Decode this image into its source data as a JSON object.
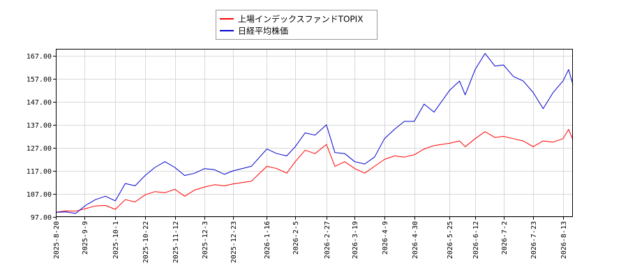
{
  "chart_data": {
    "type": "line",
    "title": "",
    "xlabel": "",
    "ylabel": "",
    "ylim": [
      97.0,
      170.0
    ],
    "yticks": [
      "97.00",
      "107.00",
      "117.00",
      "127.00",
      "137.00",
      "147.00",
      "157.00",
      "167.00"
    ],
    "xticks": [
      "2025-8-20",
      "2025-9-9",
      "2025-10-1",
      "2025-10-22",
      "2025-11-12",
      "2025-12-3",
      "2025-12-23",
      "2026-1-16",
      "2026-2-5",
      "2026-2-27",
      "2026-3-19",
      "2026-4-9",
      "2026-4-30",
      "2026-5-25",
      "2026-6-12",
      "2026-7-2",
      "2026-7-23",
      "2026-8-13"
    ],
    "grid": true,
    "legend_position": "top-center",
    "x_range": [
      "2025-08-20",
      "2026-08-20"
    ],
    "series": [
      {
        "name": "上場インデックスファンドTOPIX",
        "color": "#ff0000",
        "points": [
          [
            "2025-08-20",
            99.0
          ],
          [
            "2025-08-27",
            99.6
          ],
          [
            "2025-09-03",
            99.5
          ],
          [
            "2025-09-10",
            100.6
          ],
          [
            "2025-09-17",
            101.8
          ],
          [
            "2025-09-24",
            102.0
          ],
          [
            "2025-10-01",
            100.3
          ],
          [
            "2025-10-08",
            104.5
          ],
          [
            "2025-10-15",
            103.5
          ],
          [
            "2025-10-22",
            106.6
          ],
          [
            "2025-10-29",
            108.0
          ],
          [
            "2025-11-05",
            107.5
          ],
          [
            "2025-11-12",
            109.0
          ],
          [
            "2025-11-19",
            106.0
          ],
          [
            "2025-11-26",
            108.7
          ],
          [
            "2025-12-03",
            110.0
          ],
          [
            "2025-12-10",
            111.0
          ],
          [
            "2025-12-17",
            110.5
          ],
          [
            "2025-12-23",
            111.3
          ],
          [
            "2026-01-05",
            112.5
          ],
          [
            "2026-01-16",
            119.0
          ],
          [
            "2026-01-23",
            118.0
          ],
          [
            "2026-01-30",
            116.0
          ],
          [
            "2026-02-05",
            121.0
          ],
          [
            "2026-02-12",
            126.0
          ],
          [
            "2026-02-19",
            124.5
          ],
          [
            "2026-02-27",
            128.5
          ],
          [
            "2026-03-05",
            119.0
          ],
          [
            "2026-03-12",
            121.0
          ],
          [
            "2026-03-19",
            118.0
          ],
          [
            "2026-03-26",
            116.0
          ],
          [
            "2026-04-02",
            119.0
          ],
          [
            "2026-04-09",
            122.0
          ],
          [
            "2026-04-16",
            123.5
          ],
          [
            "2026-04-23",
            123.0
          ],
          [
            "2026-04-30",
            124.0
          ],
          [
            "2026-05-07",
            126.5
          ],
          [
            "2026-05-14",
            128.0
          ],
          [
            "2026-05-25",
            129.0
          ],
          [
            "2026-06-01",
            130.0
          ],
          [
            "2026-06-05",
            127.5
          ],
          [
            "2026-06-12",
            131.0
          ],
          [
            "2026-06-19",
            134.0
          ],
          [
            "2026-06-26",
            131.5
          ],
          [
            "2026-07-02",
            132.0
          ],
          [
            "2026-07-09",
            131.0
          ],
          [
            "2026-07-16",
            130.0
          ],
          [
            "2026-07-23",
            127.5
          ],
          [
            "2026-07-30",
            130.0
          ],
          [
            "2026-08-06",
            129.5
          ],
          [
            "2026-08-13",
            131.0
          ],
          [
            "2026-08-17",
            135.0
          ],
          [
            "2026-08-20",
            130.5
          ]
        ]
      },
      {
        "name": "日経平均株価",
        "color": "#0000cd",
        "points": [
          [
            "2025-08-20",
            99.0
          ],
          [
            "2025-08-27",
            99.2
          ],
          [
            "2025-09-03",
            98.5
          ],
          [
            "2025-09-10",
            102.0
          ],
          [
            "2025-09-17",
            104.5
          ],
          [
            "2025-09-24",
            106.0
          ],
          [
            "2025-10-01",
            104.0
          ],
          [
            "2025-10-08",
            111.5
          ],
          [
            "2025-10-15",
            110.5
          ],
          [
            "2025-10-22",
            115.0
          ],
          [
            "2025-10-29",
            118.5
          ],
          [
            "2025-11-05",
            121.0
          ],
          [
            "2025-11-12",
            118.5
          ],
          [
            "2025-11-19",
            115.0
          ],
          [
            "2025-11-26",
            116.0
          ],
          [
            "2025-12-03",
            118.0
          ],
          [
            "2025-12-10",
            117.5
          ],
          [
            "2025-12-17",
            115.5
          ],
          [
            "2025-12-23",
            117.0
          ],
          [
            "2026-01-05",
            119.0
          ],
          [
            "2026-01-16",
            126.5
          ],
          [
            "2026-01-23",
            124.5
          ],
          [
            "2026-01-30",
            123.5
          ],
          [
            "2026-02-05",
            127.5
          ],
          [
            "2026-02-12",
            133.5
          ],
          [
            "2026-02-19",
            132.5
          ],
          [
            "2026-02-27",
            137.0
          ],
          [
            "2026-03-05",
            125.0
          ],
          [
            "2026-03-12",
            124.5
          ],
          [
            "2026-03-19",
            121.0
          ],
          [
            "2026-03-26",
            120.0
          ],
          [
            "2026-04-02",
            123.0
          ],
          [
            "2026-04-09",
            131.0
          ],
          [
            "2026-04-16",
            135.0
          ],
          [
            "2026-04-23",
            138.5
          ],
          [
            "2026-04-30",
            138.5
          ],
          [
            "2026-05-07",
            146.0
          ],
          [
            "2026-05-14",
            142.5
          ],
          [
            "2026-05-25",
            152.0
          ],
          [
            "2026-06-01",
            156.0
          ],
          [
            "2026-06-05",
            150.0
          ],
          [
            "2026-06-12",
            161.0
          ],
          [
            "2026-06-19",
            168.0
          ],
          [
            "2026-06-26",
            162.5
          ],
          [
            "2026-07-02",
            163.0
          ],
          [
            "2026-07-09",
            158.0
          ],
          [
            "2026-07-16",
            156.0
          ],
          [
            "2026-07-23",
            151.0
          ],
          [
            "2026-07-30",
            144.0
          ],
          [
            "2026-08-06",
            151.0
          ],
          [
            "2026-08-13",
            156.0
          ],
          [
            "2026-08-17",
            161.0
          ],
          [
            "2026-08-20",
            154.5
          ]
        ]
      }
    ]
  }
}
